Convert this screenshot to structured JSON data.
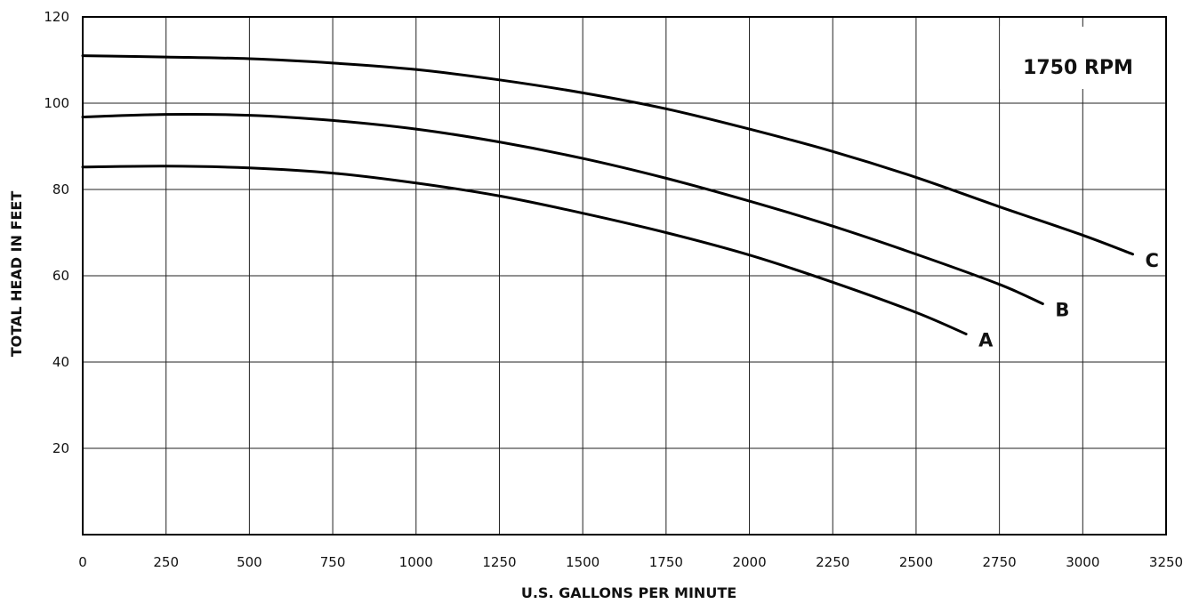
{
  "chart_data": {
    "type": "line",
    "annotation": "1750 RPM",
    "xlabel": "U.S. GALLONS PER MINUTE",
    "ylabel": "TOTAL HEAD IN FEET",
    "xlim": [
      0,
      3250
    ],
    "ylim": [
      0,
      120
    ],
    "x_ticks": [
      0,
      250,
      500,
      750,
      1000,
      1250,
      1500,
      1750,
      2000,
      2250,
      2500,
      2750,
      3000,
      3250
    ],
    "x_tick_labels": [
      "0",
      "250",
      "500",
      "750",
      "1000",
      "1250",
      "1500",
      "1750",
      "2000",
      "2250",
      "2500",
      "2750",
      "3000",
      "3250"
    ],
    "y_ticks": [
      20,
      40,
      60,
      80,
      100,
      120
    ],
    "y_tick_labels": [
      "20",
      "40",
      "60",
      "80",
      "100",
      "120"
    ],
    "grid": true,
    "series": [
      {
        "name": "A",
        "x": [
          0,
          250,
          500,
          750,
          1000,
          1250,
          1500,
          1750,
          2000,
          2250,
          2500,
          2650
        ],
        "y": [
          85.2,
          85.4,
          85.0,
          83.8,
          81.5,
          78.5,
          74.5,
          70.0,
          64.8,
          58.5,
          51.5,
          46.5
        ]
      },
      {
        "name": "B",
        "x": [
          0,
          250,
          500,
          750,
          1000,
          1250,
          1500,
          1750,
          2000,
          2250,
          2500,
          2750,
          2880
        ],
        "y": [
          96.8,
          97.4,
          97.2,
          96.0,
          94.0,
          91.0,
          87.2,
          82.6,
          77.3,
          71.5,
          65.0,
          58.0,
          53.5
        ]
      },
      {
        "name": "C",
        "x": [
          0,
          250,
          500,
          750,
          1000,
          1250,
          1500,
          1750,
          2000,
          2250,
          2500,
          2750,
          3000,
          3150
        ],
        "y": [
          111.0,
          110.7,
          110.3,
          109.3,
          107.8,
          105.4,
          102.4,
          98.7,
          94.0,
          88.8,
          82.8,
          76.0,
          69.4,
          65.0
        ]
      }
    ]
  }
}
